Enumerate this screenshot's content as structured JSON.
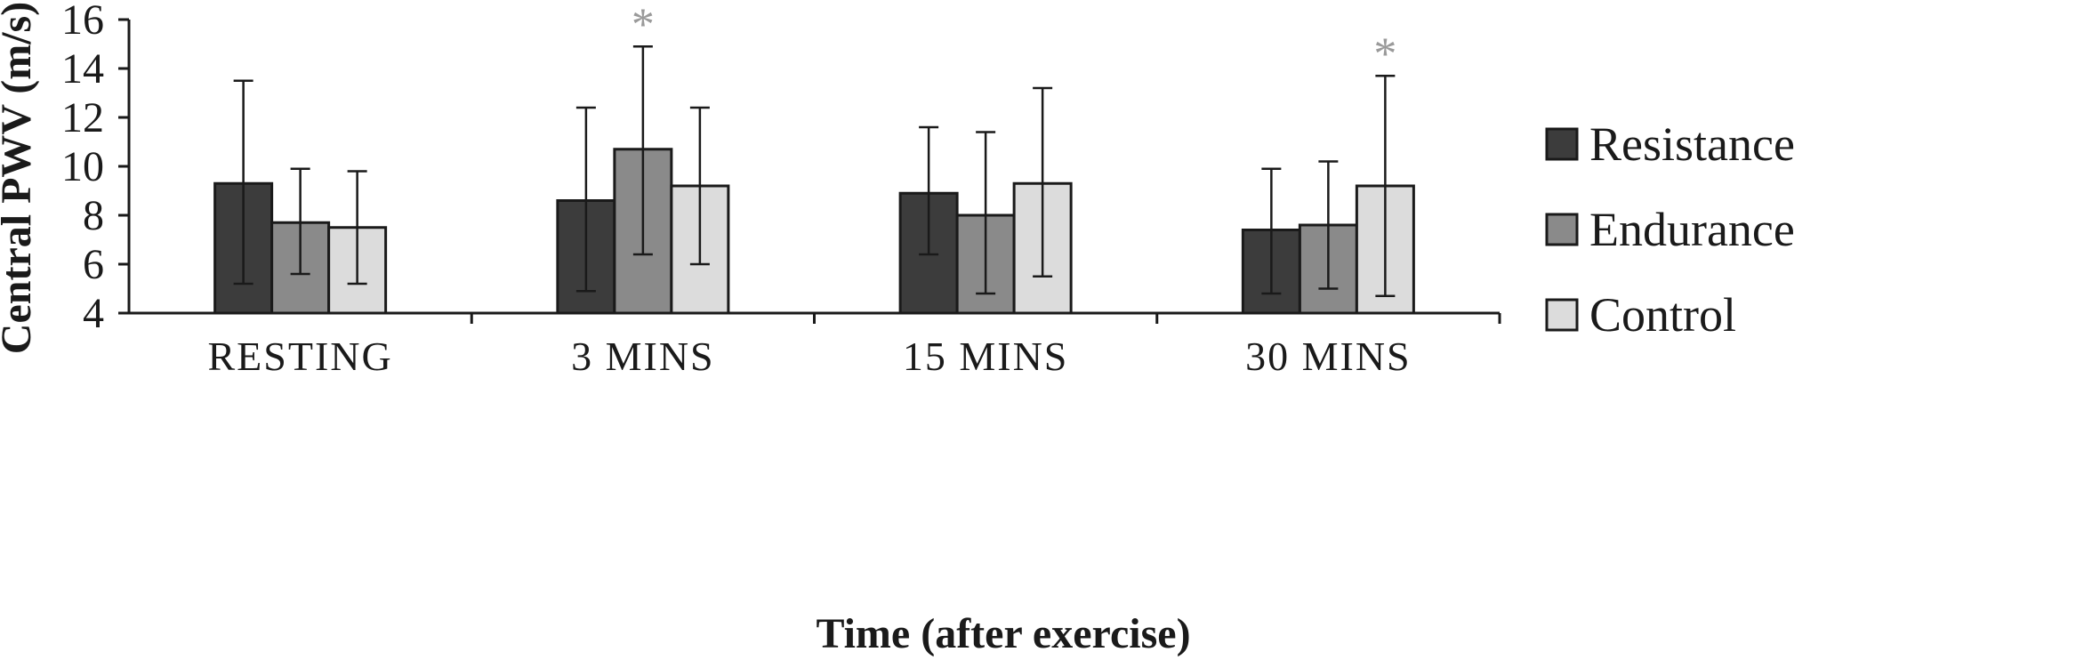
{
  "chart_data": {
    "type": "bar",
    "title": "",
    "xlabel": "Time (after exercise)",
    "ylabel": "Central PWV (m/s)",
    "ylim": [
      4,
      16
    ],
    "yticks": [
      4,
      6,
      8,
      10,
      12,
      14,
      16
    ],
    "grid": false,
    "legend_position": "right",
    "categories": [
      "RESTING",
      "3 MINS",
      "15 MINS",
      "30 MINS"
    ],
    "series": [
      {
        "name": "Resistance",
        "color": "#3c3c3c",
        "values": [
          9.3,
          8.6,
          8.9,
          7.4
        ],
        "error_low": [
          5.2,
          4.9,
          6.4,
          4.8
        ],
        "error_high": [
          13.5,
          12.4,
          11.6,
          9.9
        ],
        "significant": [
          false,
          false,
          false,
          false
        ]
      },
      {
        "name": "Endurance",
        "color": "#8a8a8a",
        "values": [
          7.7,
          10.7,
          8.0,
          7.6
        ],
        "error_low": [
          5.6,
          6.4,
          4.8,
          5.0
        ],
        "error_high": [
          9.9,
          14.9,
          11.4,
          10.2
        ],
        "significant": [
          false,
          true,
          false,
          false
        ]
      },
      {
        "name": "Control",
        "color": "#dcdcdc",
        "values": [
          7.5,
          9.2,
          9.3,
          9.2
        ],
        "error_low": [
          5.2,
          6.0,
          5.5,
          4.7
        ],
        "error_high": [
          9.8,
          12.4,
          13.2,
          13.7
        ],
        "significant": [
          false,
          false,
          false,
          true
        ]
      }
    ],
    "annotations": {
      "significance_marker": "*"
    }
  }
}
